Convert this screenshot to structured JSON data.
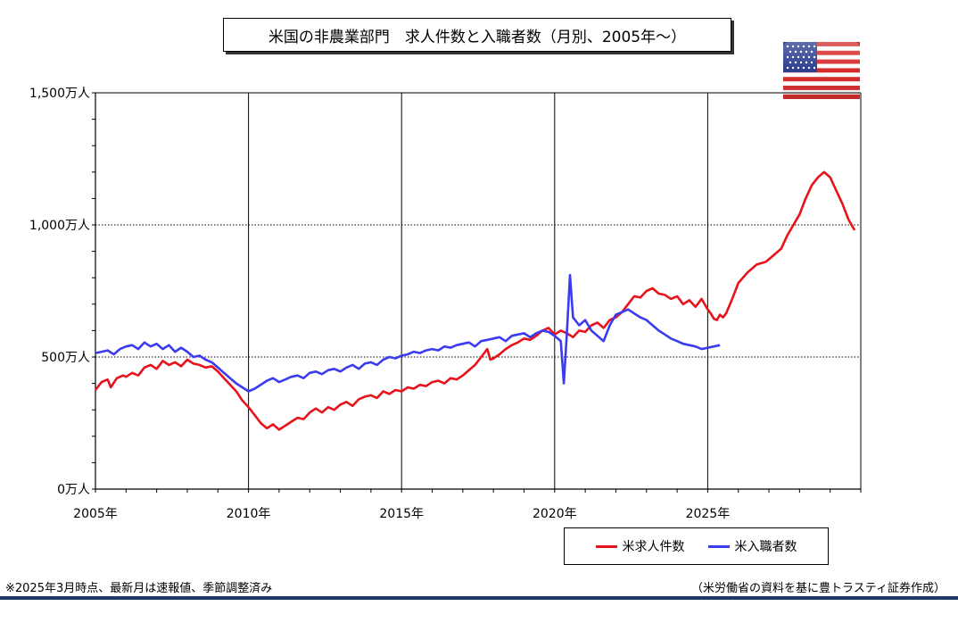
{
  "title": "米国の非農業部門　求人件数と入職者数（月別、2005年～）",
  "note_left": "※2025年3月時点、最新月は速報値、季節調整済み",
  "note_right": "（米労働省の資料を基に豊トラスティ証券作成）",
  "flag_icon": "us-flag-icon",
  "colors": {
    "openings": "#e8121b",
    "hires": "#3b3bf0",
    "footer_rule": "#1f3864"
  },
  "chart_data": {
    "type": "line",
    "title": "米国の非農業部門　求人件数と入職者数（月別、2005年～）",
    "xlabel": "",
    "ylabel": "",
    "xlim": [
      2005,
      2030
    ],
    "ylim": [
      0,
      1500
    ],
    "y_unit": "万人",
    "x_ticks": [
      2005,
      2010,
      2015,
      2020,
      2025
    ],
    "x_tick_labels": [
      "2005年",
      "2010年",
      "2015年",
      "2020年",
      "2025年"
    ],
    "y_ticks": [
      0,
      500,
      1000,
      1500
    ],
    "y_tick_labels": [
      "0万人",
      "500万人",
      "1,000万人",
      "1,500万人"
    ],
    "grid": "dotted horizontal at 500 and 1,000; solid vertical at 5-year marks",
    "legend_position": "bottom-right",
    "series": [
      {
        "name": "米求人件数",
        "color": "#e8121b",
        "points": [
          [
            2005.0,
            375
          ],
          [
            2005.2,
            405
          ],
          [
            2005.4,
            415
          ],
          [
            2005.5,
            385
          ],
          [
            2005.7,
            420
          ],
          [
            2005.9,
            430
          ],
          [
            2006.0,
            425
          ],
          [
            2006.2,
            440
          ],
          [
            2006.4,
            430
          ],
          [
            2006.6,
            460
          ],
          [
            2006.8,
            470
          ],
          [
            2007.0,
            455
          ],
          [
            2007.2,
            485
          ],
          [
            2007.4,
            470
          ],
          [
            2007.6,
            480
          ],
          [
            2007.8,
            465
          ],
          [
            2008.0,
            490
          ],
          [
            2008.2,
            475
          ],
          [
            2008.4,
            470
          ],
          [
            2008.6,
            460
          ],
          [
            2008.8,
            465
          ],
          [
            2009.0,
            445
          ],
          [
            2009.2,
            420
          ],
          [
            2009.4,
            395
          ],
          [
            2009.6,
            370
          ],
          [
            2009.8,
            335
          ],
          [
            2010.0,
            310
          ],
          [
            2010.2,
            280
          ],
          [
            2010.4,
            250
          ],
          [
            2010.6,
            230
          ],
          [
            2010.8,
            245
          ],
          [
            2011.0,
            225
          ],
          [
            2011.2,
            240
          ],
          [
            2011.4,
            255
          ],
          [
            2011.6,
            270
          ],
          [
            2011.8,
            265
          ],
          [
            2012.0,
            290
          ],
          [
            2012.2,
            305
          ],
          [
            2012.4,
            290
          ],
          [
            2012.6,
            310
          ],
          [
            2012.8,
            300
          ],
          [
            2013.0,
            320
          ],
          [
            2013.2,
            330
          ],
          [
            2013.4,
            315
          ],
          [
            2013.6,
            340
          ],
          [
            2013.8,
            350
          ],
          [
            2014.0,
            355
          ],
          [
            2014.2,
            345
          ],
          [
            2014.4,
            370
          ],
          [
            2014.6,
            360
          ],
          [
            2014.8,
            375
          ],
          [
            2015.0,
            370
          ],
          [
            2015.2,
            385
          ],
          [
            2015.4,
            380
          ],
          [
            2015.6,
            395
          ],
          [
            2015.8,
            390
          ],
          [
            2016.0,
            405
          ],
          [
            2016.2,
            410
          ],
          [
            2016.4,
            400
          ],
          [
            2016.6,
            420
          ],
          [
            2016.8,
            415
          ],
          [
            2017.0,
            430
          ],
          [
            2017.2,
            450
          ],
          [
            2017.4,
            470
          ],
          [
            2017.6,
            500
          ],
          [
            2017.8,
            530
          ],
          [
            2017.9,
            490
          ],
          [
            2018.0,
            495
          ],
          [
            2018.2,
            510
          ],
          [
            2018.4,
            530
          ],
          [
            2018.6,
            545
          ],
          [
            2018.8,
            555
          ],
          [
            2019.0,
            570
          ],
          [
            2019.2,
            565
          ],
          [
            2019.4,
            580
          ],
          [
            2019.6,
            600
          ],
          [
            2019.8,
            610
          ],
          [
            2020.0,
            585
          ],
          [
            2020.2,
            600
          ],
          [
            2020.4,
            590
          ],
          [
            2020.6,
            575
          ],
          [
            2020.8,
            600
          ],
          [
            2021.0,
            595
          ],
          [
            2021.2,
            620
          ],
          [
            2021.4,
            630
          ],
          [
            2021.6,
            610
          ],
          [
            2021.8,
            640
          ],
          [
            2022.0,
            650
          ],
          [
            2022.2,
            670
          ],
          [
            2022.4,
            700
          ],
          [
            2022.6,
            730
          ],
          [
            2022.8,
            725
          ],
          [
            2023.0,
            750
          ],
          [
            2023.2,
            760
          ],
          [
            2023.4,
            740
          ],
          [
            2023.6,
            735
          ],
          [
            2023.8,
            720
          ],
          [
            2024.0,
            730
          ],
          [
            2024.2,
            700
          ],
          [
            2024.4,
            715
          ],
          [
            2024.6,
            690
          ],
          [
            2024.8,
            720
          ],
          [
            2025.0,
            680
          ],
          [
            2025.1,
            665
          ],
          [
            2025.2,
            645
          ],
          [
            2025.3,
            640
          ],
          [
            2025.4,
            660
          ],
          [
            2025.5,
            650
          ],
          [
            2025.6,
            665
          ],
          [
            2025.8,
            720
          ],
          [
            2026.0,
            780
          ],
          [
            2026.3,
            820
          ],
          [
            2026.6,
            850
          ],
          [
            2026.9,
            860
          ],
          [
            2027.1,
            880
          ],
          [
            2027.4,
            910
          ],
          [
            2027.6,
            960
          ],
          [
            2027.8,
            1000
          ],
          [
            2028.0,
            1040
          ],
          [
            2028.2,
            1100
          ],
          [
            2028.4,
            1150
          ],
          [
            2028.6,
            1180
          ],
          [
            2028.8,
            1200
          ],
          [
            2029.0,
            1180
          ],
          [
            2029.2,
            1130
          ],
          [
            2029.4,
            1080
          ],
          [
            2029.6,
            1020
          ],
          [
            2029.8,
            980
          ]
        ]
      },
      {
        "name": "米入職者数",
        "color": "#3b3bf0",
        "points": [
          [
            2005.0,
            515
          ],
          [
            2005.2,
            520
          ],
          [
            2005.4,
            525
          ],
          [
            2005.6,
            510
          ],
          [
            2005.8,
            530
          ],
          [
            2006.0,
            540
          ],
          [
            2006.2,
            545
          ],
          [
            2006.4,
            530
          ],
          [
            2006.6,
            555
          ],
          [
            2006.8,
            540
          ],
          [
            2007.0,
            550
          ],
          [
            2007.2,
            530
          ],
          [
            2007.4,
            545
          ],
          [
            2007.6,
            520
          ],
          [
            2007.8,
            535
          ],
          [
            2008.0,
            520
          ],
          [
            2008.2,
            500
          ],
          [
            2008.4,
            505
          ],
          [
            2008.6,
            490
          ],
          [
            2008.8,
            480
          ],
          [
            2009.0,
            460
          ],
          [
            2009.2,
            440
          ],
          [
            2009.4,
            420
          ],
          [
            2009.6,
            400
          ],
          [
            2009.8,
            385
          ],
          [
            2010.0,
            370
          ],
          [
            2010.2,
            380
          ],
          [
            2010.4,
            395
          ],
          [
            2010.6,
            410
          ],
          [
            2010.8,
            420
          ],
          [
            2011.0,
            405
          ],
          [
            2011.2,
            415
          ],
          [
            2011.4,
            425
          ],
          [
            2011.6,
            430
          ],
          [
            2011.8,
            420
          ],
          [
            2012.0,
            440
          ],
          [
            2012.2,
            445
          ],
          [
            2012.4,
            435
          ],
          [
            2012.6,
            450
          ],
          [
            2012.8,
            455
          ],
          [
            2013.0,
            445
          ],
          [
            2013.2,
            460
          ],
          [
            2013.4,
            470
          ],
          [
            2013.6,
            455
          ],
          [
            2013.8,
            475
          ],
          [
            2014.0,
            480
          ],
          [
            2014.2,
            470
          ],
          [
            2014.4,
            490
          ],
          [
            2014.6,
            500
          ],
          [
            2014.8,
            495
          ],
          [
            2015.0,
            505
          ],
          [
            2015.2,
            510
          ],
          [
            2015.4,
            520
          ],
          [
            2015.6,
            515
          ],
          [
            2015.8,
            525
          ],
          [
            2016.0,
            530
          ],
          [
            2016.2,
            525
          ],
          [
            2016.4,
            540
          ],
          [
            2016.6,
            535
          ],
          [
            2016.8,
            545
          ],
          [
            2017.0,
            550
          ],
          [
            2017.2,
            555
          ],
          [
            2017.4,
            540
          ],
          [
            2017.6,
            560
          ],
          [
            2017.8,
            565
          ],
          [
            2018.0,
            570
          ],
          [
            2018.2,
            575
          ],
          [
            2018.4,
            560
          ],
          [
            2018.6,
            580
          ],
          [
            2018.8,
            585
          ],
          [
            2019.0,
            590
          ],
          [
            2019.2,
            575
          ],
          [
            2019.4,
            590
          ],
          [
            2019.6,
            600
          ],
          [
            2019.8,
            595
          ],
          [
            2020.0,
            580
          ],
          [
            2020.2,
            560
          ],
          [
            2020.3,
            400
          ],
          [
            2020.4,
            590
          ],
          [
            2020.5,
            810
          ],
          [
            2020.6,
            650
          ],
          [
            2020.8,
            620
          ],
          [
            2021.0,
            640
          ],
          [
            2021.2,
            600
          ],
          [
            2021.4,
            580
          ],
          [
            2021.6,
            560
          ],
          [
            2021.8,
            620
          ],
          [
            2022.0,
            660
          ],
          [
            2022.2,
            670
          ],
          [
            2022.4,
            680
          ],
          [
            2022.6,
            665
          ],
          [
            2022.8,
            650
          ],
          [
            2023.0,
            640
          ],
          [
            2023.2,
            620
          ],
          [
            2023.4,
            600
          ],
          [
            2023.6,
            585
          ],
          [
            2023.8,
            570
          ],
          [
            2024.0,
            560
          ],
          [
            2024.2,
            550
          ],
          [
            2024.4,
            545
          ],
          [
            2024.6,
            540
          ],
          [
            2024.8,
            530
          ],
          [
            2025.0,
            535
          ],
          [
            2025.2,
            540
          ],
          [
            2025.4,
            545
          ]
        ]
      }
    ]
  }
}
